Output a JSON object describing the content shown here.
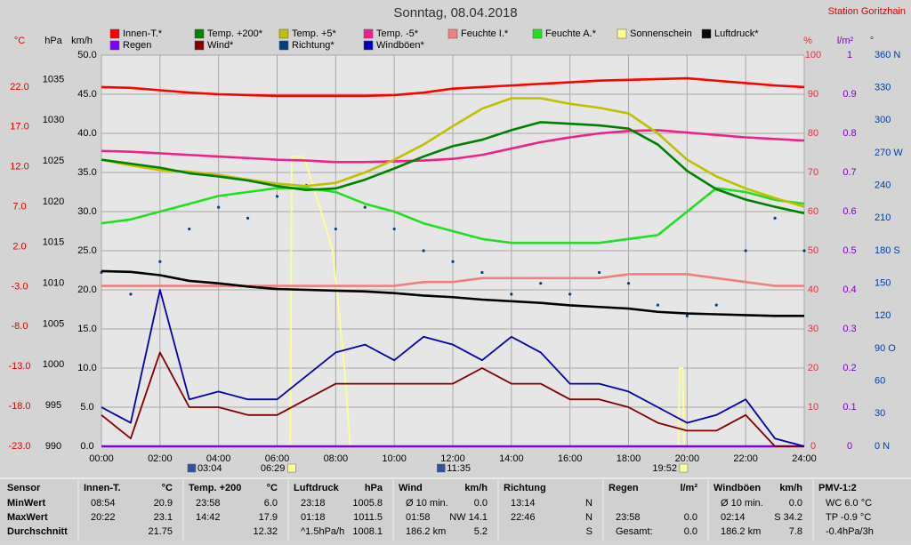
{
  "chart_data": {
    "type": "line",
    "title": "Sonntag, 08.04.2018",
    "station": "Station Goritzhain",
    "xlim": [
      0,
      24
    ],
    "xticks": [
      {
        "value": 0,
        "label": "00:00"
      },
      {
        "value": 2,
        "label": "02:00"
      },
      {
        "value": 4,
        "label": "04:00"
      },
      {
        "value": 6,
        "label": "06:00"
      },
      {
        "value": 8,
        "label": "08:00"
      },
      {
        "value": 10,
        "label": "10:00"
      },
      {
        "value": 12,
        "label": "12:00"
      },
      {
        "value": 14,
        "label": "14:00"
      },
      {
        "value": 16,
        "label": "16:00"
      },
      {
        "value": 18,
        "label": "18:00"
      },
      {
        "value": 20,
        "label": "20:00"
      },
      {
        "value": 22,
        "label": "22:00"
      },
      {
        "value": 24,
        "label": "24:00"
      }
    ],
    "grid": true,
    "axes": [
      {
        "label": "°C",
        "color": "#e00000",
        "side": "left",
        "lim": [
          -23,
          26
        ],
        "ticks": [
          {
            "value": -23,
            "label": "-23.0"
          },
          {
            "value": -18,
            "label": "-18.0"
          },
          {
            "value": -13,
            "label": "-13.0"
          },
          {
            "value": -8,
            "label": "-8.0"
          },
          {
            "value": -3,
            "label": "-3.0"
          },
          {
            "value": 2,
            "label": "2.0"
          },
          {
            "value": 7,
            "label": "7.0"
          },
          {
            "value": 12,
            "label": "12.0"
          },
          {
            "value": 17,
            "label": "17.0"
          },
          {
            "value": 22,
            "label": "22.0"
          }
        ]
      },
      {
        "label": "hPa",
        "color": "#000000",
        "side": "left",
        "lim": [
          990,
          1038
        ],
        "ticks": [
          990,
          995,
          1000,
          1005,
          1010,
          1015,
          1020,
          1025,
          1030,
          1035
        ]
      },
      {
        "label": "km/h",
        "color": "#000000",
        "side": "left",
        "lim": [
          0,
          50
        ],
        "ticks": [
          {
            "value": 0,
            "label": "0.0"
          },
          {
            "value": 5,
            "label": "5.0"
          },
          {
            "value": 10,
            "label": "10.0"
          },
          {
            "value": 15,
            "label": "15.0"
          },
          {
            "value": 20,
            "label": "20.0"
          },
          {
            "value": 25,
            "label": "25.0"
          },
          {
            "value": 30,
            "label": "30.0"
          },
          {
            "value": 35,
            "label": "35.0"
          },
          {
            "value": 40,
            "label": "40.0"
          },
          {
            "value": 45,
            "label": "45.0"
          },
          {
            "value": 50,
            "label": "50.0"
          }
        ]
      },
      {
        "label": "%",
        "color": "#e03040",
        "side": "right",
        "lim": [
          0,
          100
        ],
        "ticks": [
          0,
          10,
          20,
          30,
          40,
          50,
          60,
          70,
          80,
          90,
          100
        ]
      },
      {
        "label": "l/m²",
        "color": "#8000c0",
        "side": "right",
        "lim": [
          0,
          1
        ],
        "ticks": [
          0,
          0.1,
          0.2,
          0.3,
          0.4,
          0.5,
          0.6,
          0.7,
          0.8,
          0.9,
          1
        ]
      },
      {
        "label": "°",
        "color": "#0040a0",
        "side": "right",
        "lim": [
          0,
          360
        ],
        "ticks": [
          {
            "value": 0,
            "label": "0  N"
          },
          30,
          60,
          {
            "value": 90,
            "label": "90  O"
          },
          120,
          150,
          {
            "value": 180,
            "label": "180  S"
          },
          210,
          240,
          {
            "value": 270,
            "label": "270  W"
          },
          300,
          330,
          {
            "value": 360,
            "label": "360  N"
          }
        ]
      }
    ],
    "x": [
      0,
      1,
      2,
      3,
      4,
      5,
      6,
      7,
      8,
      9,
      10,
      11,
      12,
      13,
      14,
      15,
      16,
      17,
      18,
      19,
      20,
      21,
      22,
      23,
      24
    ],
    "series": [
      {
        "name": "Innen-T.*",
        "color": "#ff0000",
        "axis": 0,
        "values": [
          22.0,
          21.9,
          21.6,
          21.3,
          21.1,
          21.0,
          20.9,
          20.9,
          20.9,
          20.9,
          21.0,
          21.3,
          21.8,
          22.0,
          22.2,
          22.4,
          22.6,
          22.8,
          22.9,
          23.0,
          23.1,
          22.8,
          22.5,
          22.2,
          22.0
        ]
      },
      {
        "name": "Temp. +200*",
        "color": "#008000",
        "axis": 0,
        "values": [
          12.9,
          12.4,
          11.9,
          11.2,
          10.8,
          10.3,
          9.6,
          9.1,
          9.3,
          10.4,
          11.8,
          13.3,
          14.6,
          15.4,
          16.6,
          17.6,
          17.4,
          17.2,
          16.8,
          14.8,
          11.5,
          9.2,
          7.9,
          7.0,
          6.2
        ]
      },
      {
        "name": "Temp. +5*",
        "color": "#c0c000",
        "axis": 0,
        "values": [
          12.9,
          12.2,
          11.6,
          11.4,
          11.0,
          10.4,
          9.9,
          9.6,
          10.0,
          11.3,
          12.9,
          14.8,
          17.1,
          19.3,
          20.6,
          20.6,
          19.9,
          19.4,
          18.7,
          16.2,
          12.9,
          10.8,
          9.3,
          8.1,
          7.0
        ]
      },
      {
        "name": "Temp. -5*",
        "color": "#f0208a",
        "axis": 0,
        "values": [
          14.0,
          13.9,
          13.7,
          13.5,
          13.3,
          13.1,
          12.9,
          12.8,
          12.6,
          12.6,
          12.7,
          12.8,
          13.0,
          13.5,
          14.3,
          15.1,
          15.7,
          16.2,
          16.5,
          16.6,
          16.3,
          16.0,
          15.7,
          15.5,
          15.3
        ]
      },
      {
        "name": "Feuchte I.*",
        "color": "#f08080",
        "axis": 3,
        "values": [
          41,
          41,
          41,
          41,
          41,
          41,
          41,
          41,
          41,
          41,
          41,
          42,
          42,
          43,
          43,
          43,
          43,
          43,
          44,
          44,
          44,
          43,
          42,
          41,
          41
        ]
      },
      {
        "name": "Feuchte A.*",
        "color": "#20e020",
        "axis": 3,
        "values": [
          57,
          58,
          60,
          62,
          64,
          65,
          66,
          66,
          65,
          62,
          60,
          57,
          55,
          53,
          52,
          52,
          52,
          52,
          53,
          54,
          60,
          66,
          65,
          63,
          62
        ]
      },
      {
        "name": "Sonnenschein",
        "color": "#ffff90",
        "axis": 2,
        "x": [
          6.45,
          6.5,
          6.9,
          7.0,
          7.5,
          7.9,
          8.3,
          8.5,
          19.7,
          19.75,
          19.85,
          19.9
        ],
        "values": [
          0,
          37,
          37,
          36,
          30,
          25,
          10,
          0,
          0,
          10,
          10,
          0
        ]
      },
      {
        "name": "Luftdruck*",
        "color": "#000000",
        "axis": 1,
        "values": [
          1011.5,
          1011.4,
          1011.0,
          1010.3,
          1010.0,
          1009.6,
          1009.3,
          1009.2,
          1009.1,
          1009.0,
          1008.8,
          1008.5,
          1008.3,
          1008.0,
          1007.8,
          1007.6,
          1007.3,
          1007.1,
          1006.9,
          1006.5,
          1006.3,
          1006.2,
          1006.1,
          1006.0,
          1006.0
        ]
      },
      {
        "name": "Regen",
        "color": "#8000ff",
        "axis": 4,
        "values": [
          0,
          0,
          0,
          0,
          0,
          0,
          0,
          0,
          0,
          0,
          0,
          0,
          0,
          0,
          0,
          0,
          0,
          0,
          0,
          0,
          0,
          0,
          0,
          0,
          0
        ]
      },
      {
        "name": "Wind*",
        "color": "#800000",
        "axis": 2,
        "values": [
          4,
          1,
          12,
          5,
          5,
          4,
          4,
          6,
          8,
          8,
          8,
          8,
          8,
          10,
          8,
          8,
          6,
          6,
          5,
          3,
          2,
          2,
          4,
          0,
          0
        ]
      },
      {
        "name": "Richtung*",
        "color": "#004080",
        "axis": 5,
        "style": "dots",
        "values": [
          160,
          140,
          170,
          200,
          220,
          210,
          230,
          240,
          200,
          220,
          200,
          180,
          170,
          160,
          140,
          150,
          140,
          160,
          150,
          130,
          120,
          130,
          180,
          210,
          180
        ]
      },
      {
        "name": "Windböen*",
        "color": "#0000b0",
        "axis": 2,
        "values": [
          5,
          3,
          20,
          6,
          7,
          6,
          6,
          9,
          12,
          13,
          11,
          14,
          13,
          11,
          14,
          12,
          8,
          8,
          7,
          5,
          3,
          4,
          6,
          1,
          0
        ]
      }
    ],
    "markers": [
      {
        "label": "03:04"
      },
      {
        "label": "06:29"
      },
      {
        "label": "11:35"
      },
      {
        "label": "19:52"
      }
    ]
  },
  "stats": {
    "columns": [
      {
        "header": "Sensor",
        "rows": [
          {
            "left": "MinWert"
          },
          {
            "left": "MaxWert"
          },
          {
            "left": "Durchschnitt"
          }
        ]
      },
      {
        "header": "Innen-T.",
        "unit": "°C",
        "rows": [
          {
            "left": "08:54",
            "right": "20.9"
          },
          {
            "left": "20:22",
            "right": "23.1"
          },
          {
            "right": "21.75"
          }
        ]
      },
      {
        "header": "Temp. +200",
        "unit": "°C",
        "rows": [
          {
            "left": "23:58",
            "right": "6.0"
          },
          {
            "left": "14:42",
            "right": "17.9"
          },
          {
            "right": "12.32"
          }
        ]
      },
      {
        "header": "Luftdruck",
        "unit": "hPa",
        "rows": [
          {
            "left": "23:18",
            "right": "1005.8"
          },
          {
            "left": "01:18",
            "right": "1011.5"
          },
          {
            "left": "^1.5hPa/h",
            "right": "1008.1"
          }
        ]
      },
      {
        "header": "Wind",
        "unit": "km/h",
        "rows": [
          {
            "left": "Ø 10 min.",
            "right": "0.0"
          },
          {
            "left": "01:58",
            "right": "NW 14.1"
          },
          {
            "left": "186.2 km",
            "right": "5.2"
          }
        ]
      },
      {
        "header": "Richtung",
        "rows": [
          {
            "left": "13:14",
            "right": "N"
          },
          {
            "left": "22:46",
            "right": "N"
          },
          {
            "right": "S"
          }
        ]
      },
      {
        "header": "Regen",
        "unit": "l/m²",
        "rows": [
          {},
          {
            "left": "23:58",
            "right": "0.0"
          },
          {
            "left": "Gesamt:",
            "right": "0.0"
          }
        ]
      },
      {
        "header": "Windböen",
        "unit": "km/h",
        "rows": [
          {
            "left": "Ø 10 min.",
            "right": "0.0"
          },
          {
            "left": "02:14",
            "right": "S 34.2"
          },
          {
            "left": "186.2 km",
            "right": "7.8"
          }
        ]
      },
      {
        "header": "PMV-1:2",
        "rows": [
          {
            "left": "WC 6.0 °C"
          },
          {
            "left": "TP -0.9 °C"
          },
          {
            "left": "-0.4hPa/3h"
          }
        ]
      }
    ]
  }
}
